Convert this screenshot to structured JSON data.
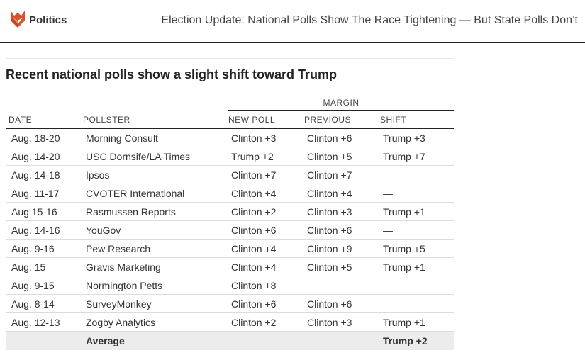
{
  "header": {
    "section": "Politics",
    "headline": "Election Update: National Polls Show The Race Tightening — But State Polls Don’t"
  },
  "table": {
    "title": "Recent national polls show a slight shift toward Trump",
    "group_label": "MARGIN",
    "columns": {
      "date": "DATE",
      "pollster": "POLLSTER",
      "new_poll": "NEW POLL",
      "previous": "PREVIOUS",
      "shift": "SHIFT"
    },
    "rows": [
      {
        "date": "Aug. 18-20",
        "pollster": "Morning Consult",
        "new_poll": "Clinton +3",
        "previous": "Clinton +6",
        "shift": "Trump +3"
      },
      {
        "date": "Aug. 14-20",
        "pollster": "USC Dornsife/LA Times",
        "new_poll": "Trump +2",
        "previous": "Clinton +5",
        "shift": "Trump +7"
      },
      {
        "date": "Aug. 14-18",
        "pollster": "Ipsos",
        "new_poll": "Clinton +7",
        "previous": "Clinton +7",
        "shift": "—"
      },
      {
        "date": "Aug. 11-17",
        "pollster": "CVOTER International",
        "new_poll": "Clinton +4",
        "previous": "Clinton +4",
        "shift": "—"
      },
      {
        "date": "Aug 15-16",
        "pollster": "Rasmussen Reports",
        "new_poll": "Clinton +2",
        "previous": "Clinton +3",
        "shift": "Trump +1"
      },
      {
        "date": "Aug. 14-16",
        "pollster": "YouGov",
        "new_poll": "Clinton +6",
        "previous": "Clinton +6",
        "shift": "—"
      },
      {
        "date": "Aug. 9-16",
        "pollster": "Pew Research",
        "new_poll": "Clinton +4",
        "previous": "Clinton +9",
        "shift": "Trump +5"
      },
      {
        "date": "Aug. 15",
        "pollster": "Gravis Marketing",
        "new_poll": "Clinton +4",
        "previous": "Clinton +5",
        "shift": "Trump +1"
      },
      {
        "date": "Aug. 9-15",
        "pollster": "Normington Petts",
        "new_poll": "Clinton +8",
        "previous": "",
        "shift": ""
      },
      {
        "date": "Aug. 8-14",
        "pollster": "SurveyMonkey",
        "new_poll": "Clinton +6",
        "previous": "Clinton +6",
        "shift": "—"
      },
      {
        "date": "Aug. 12-13",
        "pollster": "Zogby Analytics",
        "new_poll": "Clinton +2",
        "previous": "Clinton +3",
        "shift": "Trump +1"
      }
    ],
    "average": {
      "label": "Average",
      "shift": "Trump +2"
    }
  },
  "colors": {
    "logo": "#d9532a",
    "rule": "#222222",
    "average_bg": "#ececec"
  },
  "icons": {
    "logo": "fox-logo-icon"
  }
}
